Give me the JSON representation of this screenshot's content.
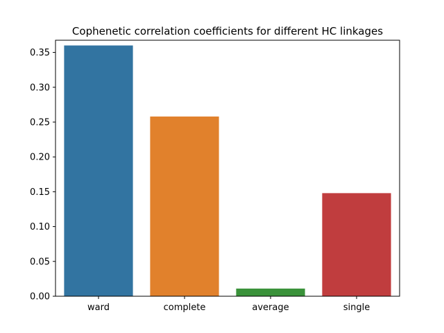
{
  "chart_data": {
    "type": "bar",
    "title": "Cophenetic correlation coefficients for different HC linkages",
    "xlabel": "",
    "ylabel": "",
    "categories": [
      "ward",
      "complete",
      "average",
      "single"
    ],
    "values": [
      0.36,
      0.258,
      0.011,
      0.148
    ],
    "colors": [
      "#3274a1",
      "#e1812c",
      "#3a923a",
      "#c03d3e"
    ],
    "ylim": [
      0,
      0.3675
    ],
    "yticks": [
      0.0,
      0.05,
      0.1,
      0.15,
      0.2,
      0.25,
      0.3,
      0.35
    ],
    "ytick_labels": [
      "0.00",
      "0.05",
      "0.10",
      "0.15",
      "0.20",
      "0.25",
      "0.30",
      "0.35"
    ],
    "grid": false,
    "legend": "none"
  }
}
